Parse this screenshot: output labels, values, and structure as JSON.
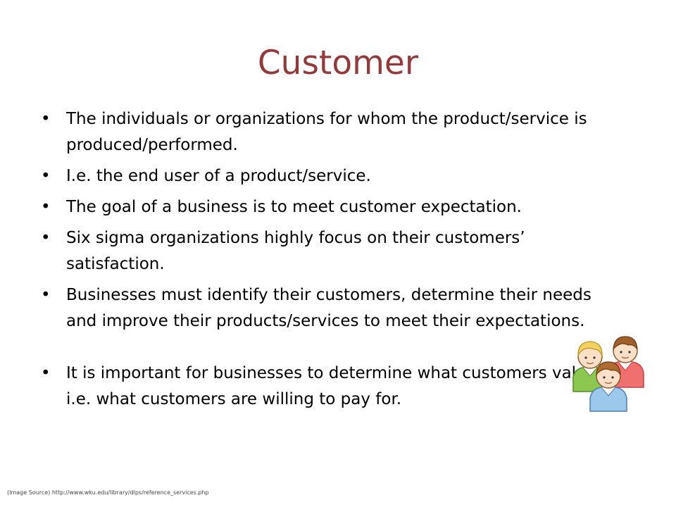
{
  "slide": {
    "title": "Customer",
    "bullets": [
      "The individuals or organizations for whom the product/service is produced/performed.",
      "I.e. the end user of a product/service.",
      "The goal of a business is to meet customer expectation.",
      "Six sigma organizations highly focus on their customers’ satisfaction.",
      "Businesses must identify their customers, determine their needs and improve their products/services to meet their expectations.",
      "It is important for businesses to determine what customers value i.e. what customers are willing to pay for."
    ],
    "bullet_symbol": "•",
    "image_source": "(Image Source) http://www.wku.edu/library/dlps/reference_services.php",
    "illustration": "customers-group-icon"
  },
  "colors": {
    "title": "#943a3a",
    "text": "#000000",
    "background": "#ffffff"
  }
}
